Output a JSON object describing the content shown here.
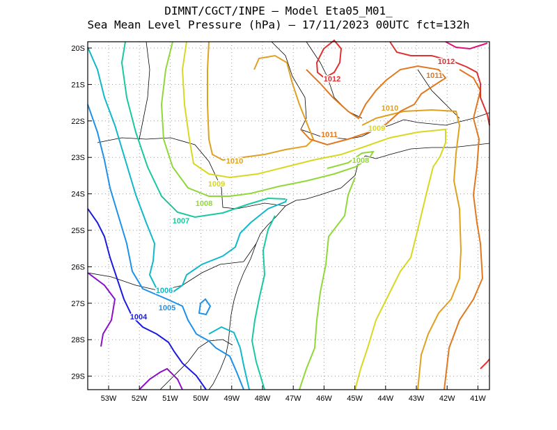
{
  "title_line1": "DIMNT/CGCT/INPE –  Model Eta05_M01_",
  "title_line2": "Sea Mean Level Pressure (hPa) – 17/11/2023 00UTC fct=132h",
  "lat_labels": [
    "20S",
    "21S",
    "22S",
    "23S",
    "24S",
    "25S",
    "26S",
    "27S",
    "28S",
    "29S"
  ],
  "lon_labels": [
    "53W",
    "52W",
    "51W",
    "50W",
    "49W",
    "48W",
    "47W",
    "46W",
    "45W",
    "44W",
    "43W",
    "42W",
    "41W"
  ],
  "contour_labels": [
    {
      "text": "1004",
      "color": "#1a1ae0"
    },
    {
      "text": "1005",
      "color": "#1e90e8"
    },
    {
      "text": "1006",
      "color": "#10b8c8"
    },
    {
      "text": "1007",
      "color": "#18c8a0"
    },
    {
      "text": "1008",
      "color": "#90d838"
    },
    {
      "text": "1008",
      "color": "#90d838"
    },
    {
      "text": "1009",
      "color": "#d8d820"
    },
    {
      "text": "1009",
      "color": "#d8d820"
    },
    {
      "text": "1010",
      "color": "#e0a020"
    },
    {
      "text": "1010",
      "color": "#e0a020"
    },
    {
      "text": "1011",
      "color": "#e07820"
    },
    {
      "text": "1011",
      "color": "#e07820"
    },
    {
      "text": "1012",
      "color": "#e03030"
    },
    {
      "text": "1012",
      "color": "#e03030"
    }
  ],
  "isobar_colors": {
    "1003": "#8a10c8",
    "1004": "#1a1ae0",
    "1005": "#1e90e8",
    "1006": "#10b8c8",
    "1007": "#18c8a0",
    "1008": "#90d838",
    "1009": "#d8d820",
    "1010": "#e0a020",
    "1011": "#e07820",
    "1012": "#e03030",
    "1013": "#e0107a"
  }
}
